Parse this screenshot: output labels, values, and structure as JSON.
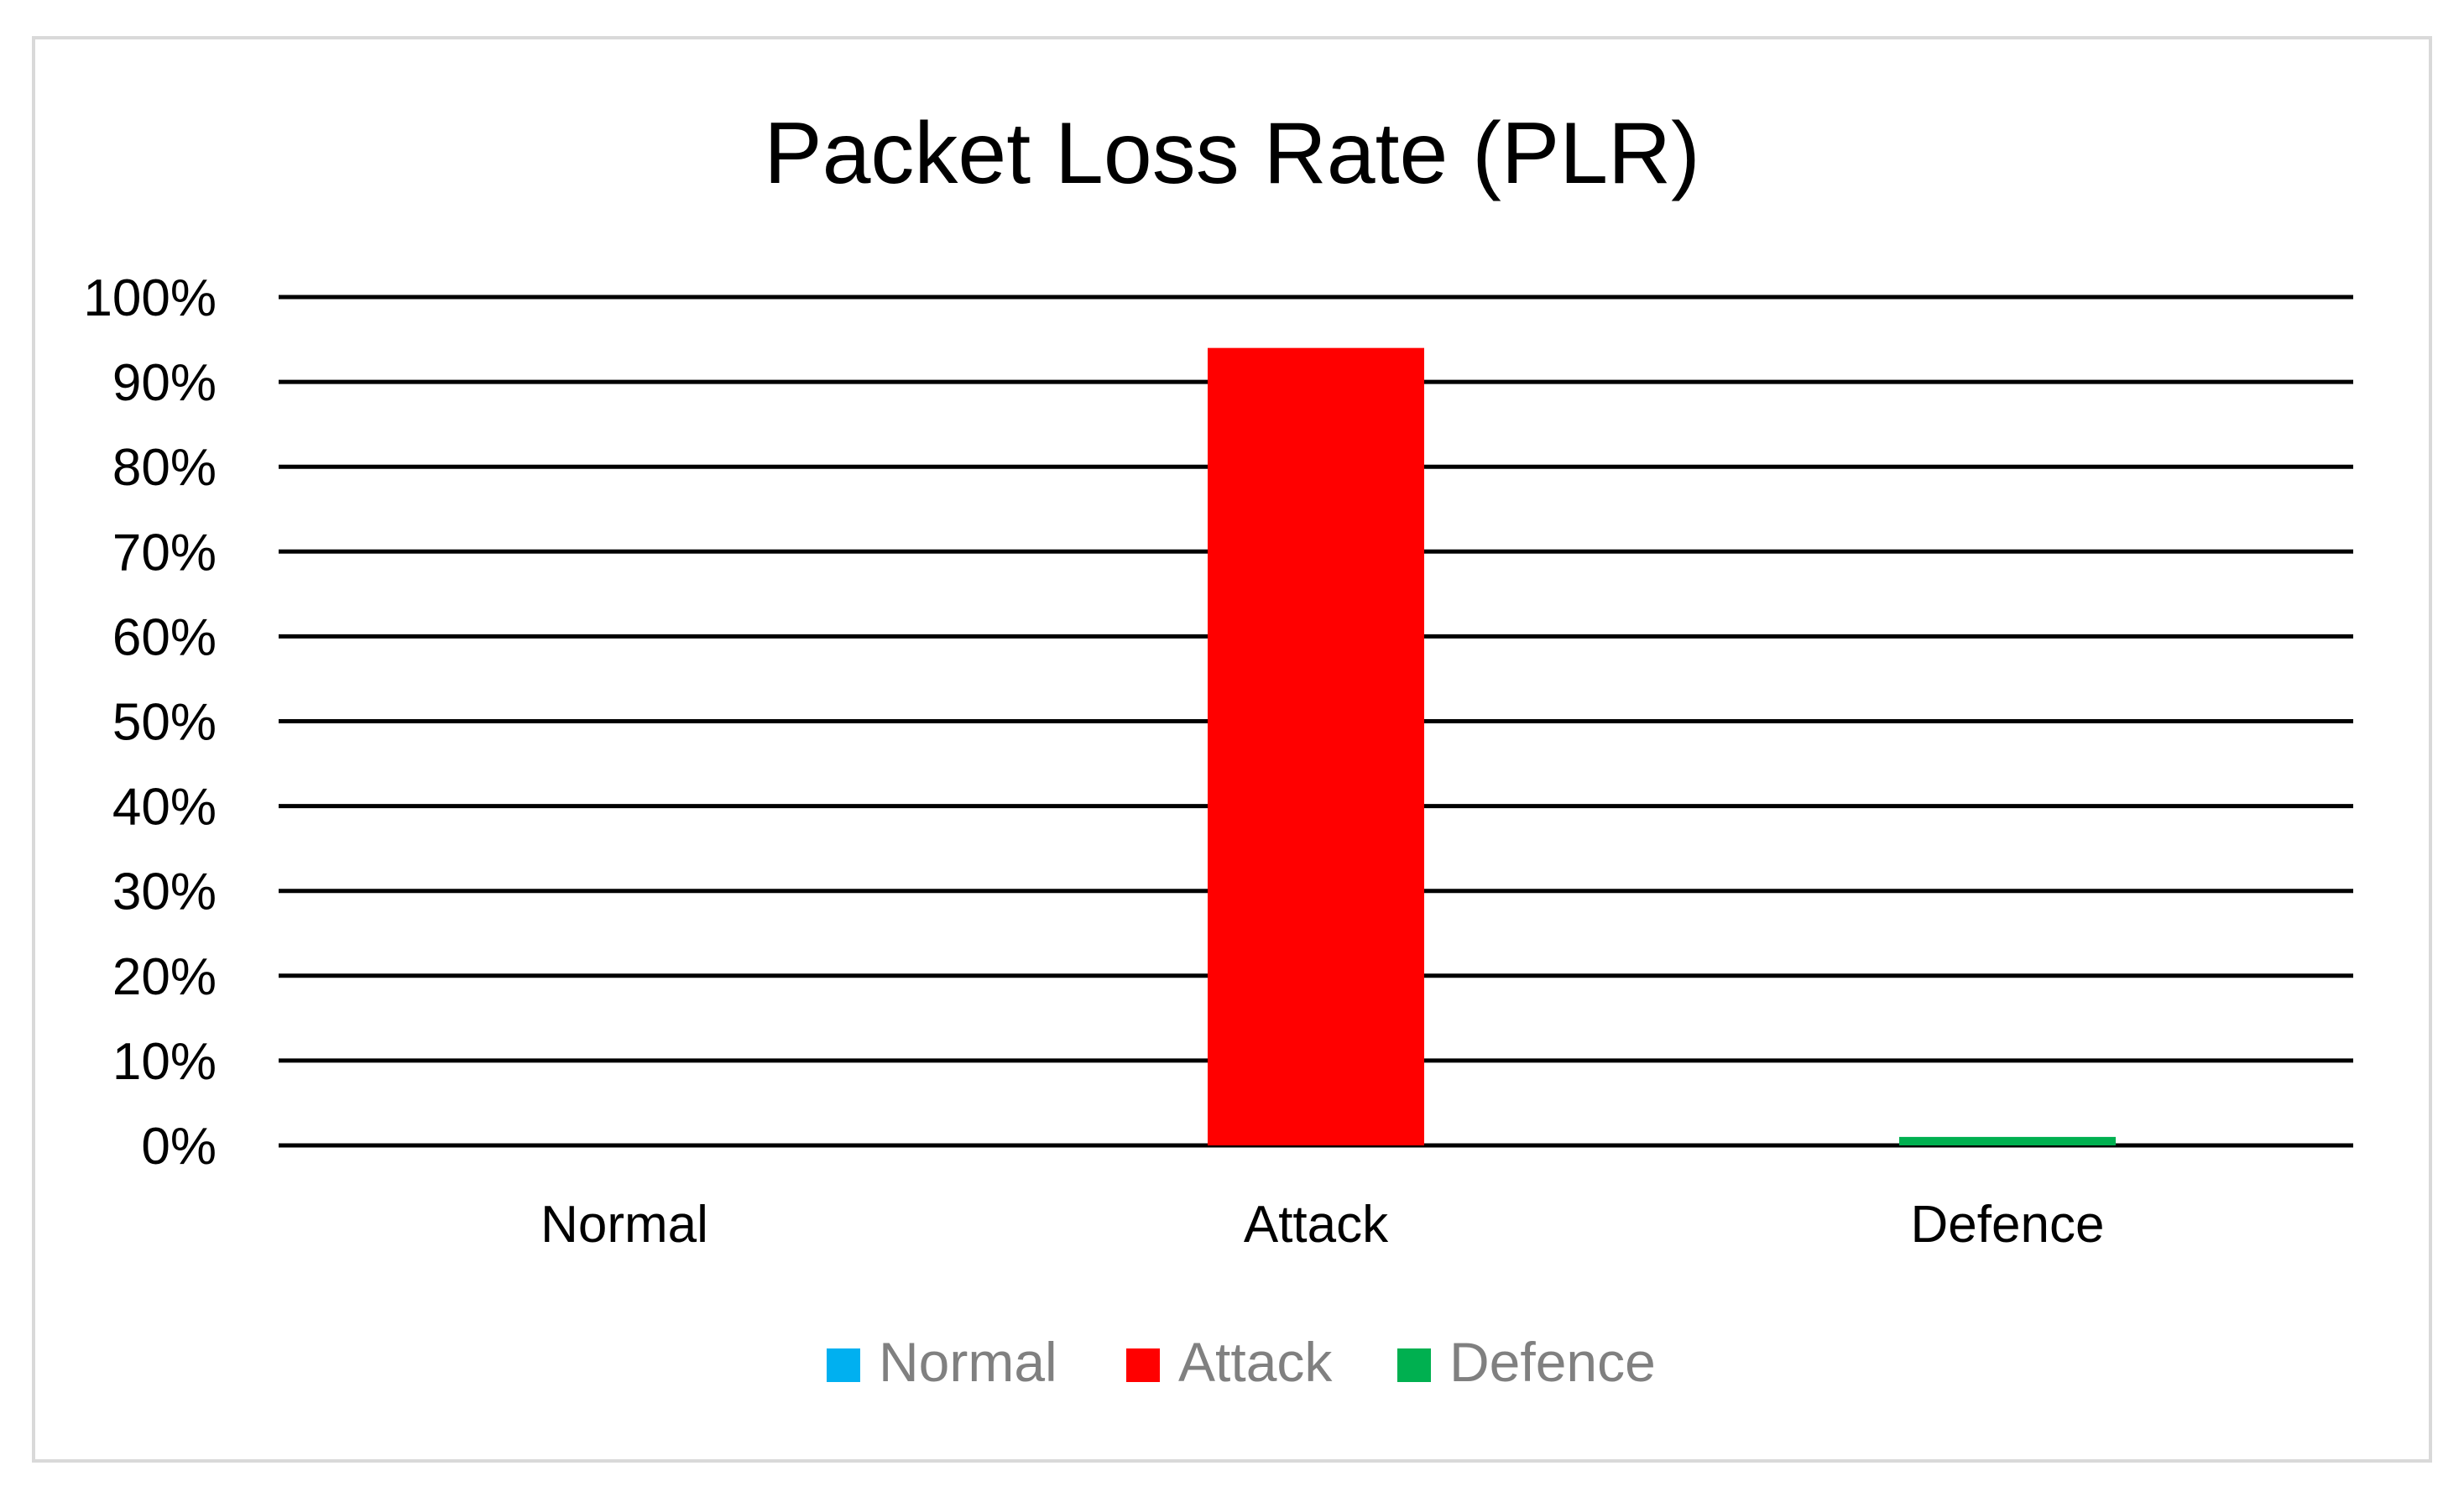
{
  "chart_data": {
    "type": "bar",
    "title": "Packet Loss Rate (PLR)",
    "xlabel": "",
    "ylabel": "",
    "categories": [
      "Normal",
      "Attack",
      "Defence"
    ],
    "series": [
      {
        "name": "Normal",
        "color": "#00b0f0",
        "values": [
          0,
          null,
          null
        ]
      },
      {
        "name": "Attack",
        "color": "#ff0000",
        "values": [
          null,
          94,
          null
        ]
      },
      {
        "name": "Defence",
        "color": "#00b050",
        "values": [
          null,
          null,
          1
        ]
      }
    ],
    "y_ticks": [
      "0%",
      "10%",
      "20%",
      "30%",
      "40%",
      "50%",
      "60%",
      "70%",
      "80%",
      "90%",
      "100%"
    ],
    "ylim": [
      0,
      100
    ],
    "y_unit": "%",
    "grid": true,
    "gridline_color": "#000000",
    "legend_position": "bottom"
  }
}
